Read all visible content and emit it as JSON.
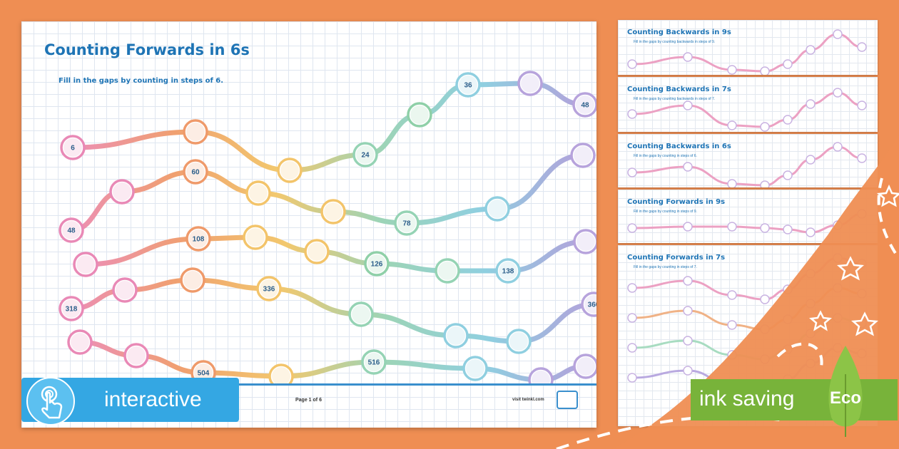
{
  "worksheet": {
    "title": "Counting Forwards in 6s",
    "instruction": "Fill in the gaps by counting in steps of 6.",
    "footer_page": "Page 1 of 6",
    "footer_site": "visit twinkl.com"
  },
  "rows": [
    {
      "nodes": [
        {
          "label": "6",
          "color": "#e989b6"
        },
        {
          "label": "",
          "color": "#ef9a6a"
        },
        {
          "label": "",
          "color": "#f3c46a"
        },
        {
          "label": "24",
          "color": "#95d3b4"
        },
        {
          "label": "",
          "color": "#8fd0a8"
        },
        {
          "label": "36",
          "color": "#8fcfe0"
        },
        {
          "label": "",
          "color": "#b7a3dc"
        },
        {
          "label": "48",
          "color": "#b7a3dc"
        }
      ]
    },
    {
      "nodes": [
        {
          "label": "48",
          "color": "#e989b6"
        },
        {
          "label": "",
          "color": "#e989b6"
        },
        {
          "label": "60",
          "color": "#ef9a6a"
        },
        {
          "label": "",
          "color": "#f3c46a"
        },
        {
          "label": "",
          "color": "#f3c46a"
        },
        {
          "label": "78",
          "color": "#95d3b4"
        },
        {
          "label": "",
          "color": "#8fcfe0"
        },
        {
          "label": "",
          "color": "#b7a3dc"
        }
      ]
    },
    {
      "nodes": [
        {
          "label": "",
          "color": "#e989b6"
        },
        {
          "label": "108",
          "color": "#ef9a6a"
        },
        {
          "label": "",
          "color": "#f3c46a"
        },
        {
          "label": "",
          "color": "#f3c46a"
        },
        {
          "label": "126",
          "color": "#8fd0a8"
        },
        {
          "label": "",
          "color": "#95d3b4"
        },
        {
          "label": "138",
          "color": "#8fcfe0"
        },
        {
          "label": "",
          "color": "#b7a3dc"
        }
      ]
    },
    {
      "nodes": [
        {
          "label": "318",
          "color": "#e989b6"
        },
        {
          "label": "",
          "color": "#e989b6"
        },
        {
          "label": "",
          "color": "#ef9a6a"
        },
        {
          "label": "336",
          "color": "#f3c46a"
        },
        {
          "label": "",
          "color": "#95d3b4"
        },
        {
          "label": "",
          "color": "#8fcfe0"
        },
        {
          "label": "",
          "color": "#8fcfe0"
        },
        {
          "label": "360",
          "color": "#b7a3dc"
        }
      ]
    },
    {
      "nodes": [
        {
          "label": "",
          "color": "#e989b6"
        },
        {
          "label": "",
          "color": "#e989b6"
        },
        {
          "label": "504",
          "color": "#ef9a6a"
        },
        {
          "label": "",
          "color": "#f3c46a"
        },
        {
          "label": "516",
          "color": "#95d3b4"
        },
        {
          "label": "",
          "color": "#8fcfe0"
        },
        {
          "label": "",
          "color": "#b7a3dc"
        },
        {
          "label": "",
          "color": "#b7a3dc"
        }
      ]
    }
  ],
  "thumbnails": [
    {
      "title": "Counting Backwards in 9s",
      "subtitle": "Fill in the gaps by counting backwards in steps of 9."
    },
    {
      "title": "Counting Backwards in 7s",
      "subtitle": "Fill in the gaps by counting backwards in steps of 7."
    },
    {
      "title": "Counting Backwards in 6s",
      "subtitle": "Fill in the gaps by counting in steps of 6."
    },
    {
      "title": "Counting Forwards in 9s",
      "subtitle": "Fill in the gaps by counting in steps of 9."
    },
    {
      "title": "Counting Forwards in 7s",
      "subtitle": "Fill in the gaps by counting in steps of 7."
    }
  ],
  "badges": {
    "interactive": "interactive",
    "ink_saving": "ink saving",
    "eco": "Eco"
  },
  "colors": {
    "background_orange": "#ef8e53",
    "title_blue": "#1e74b5",
    "interactive_blue": "#34a7e3",
    "eco_green": "#78b33a"
  }
}
